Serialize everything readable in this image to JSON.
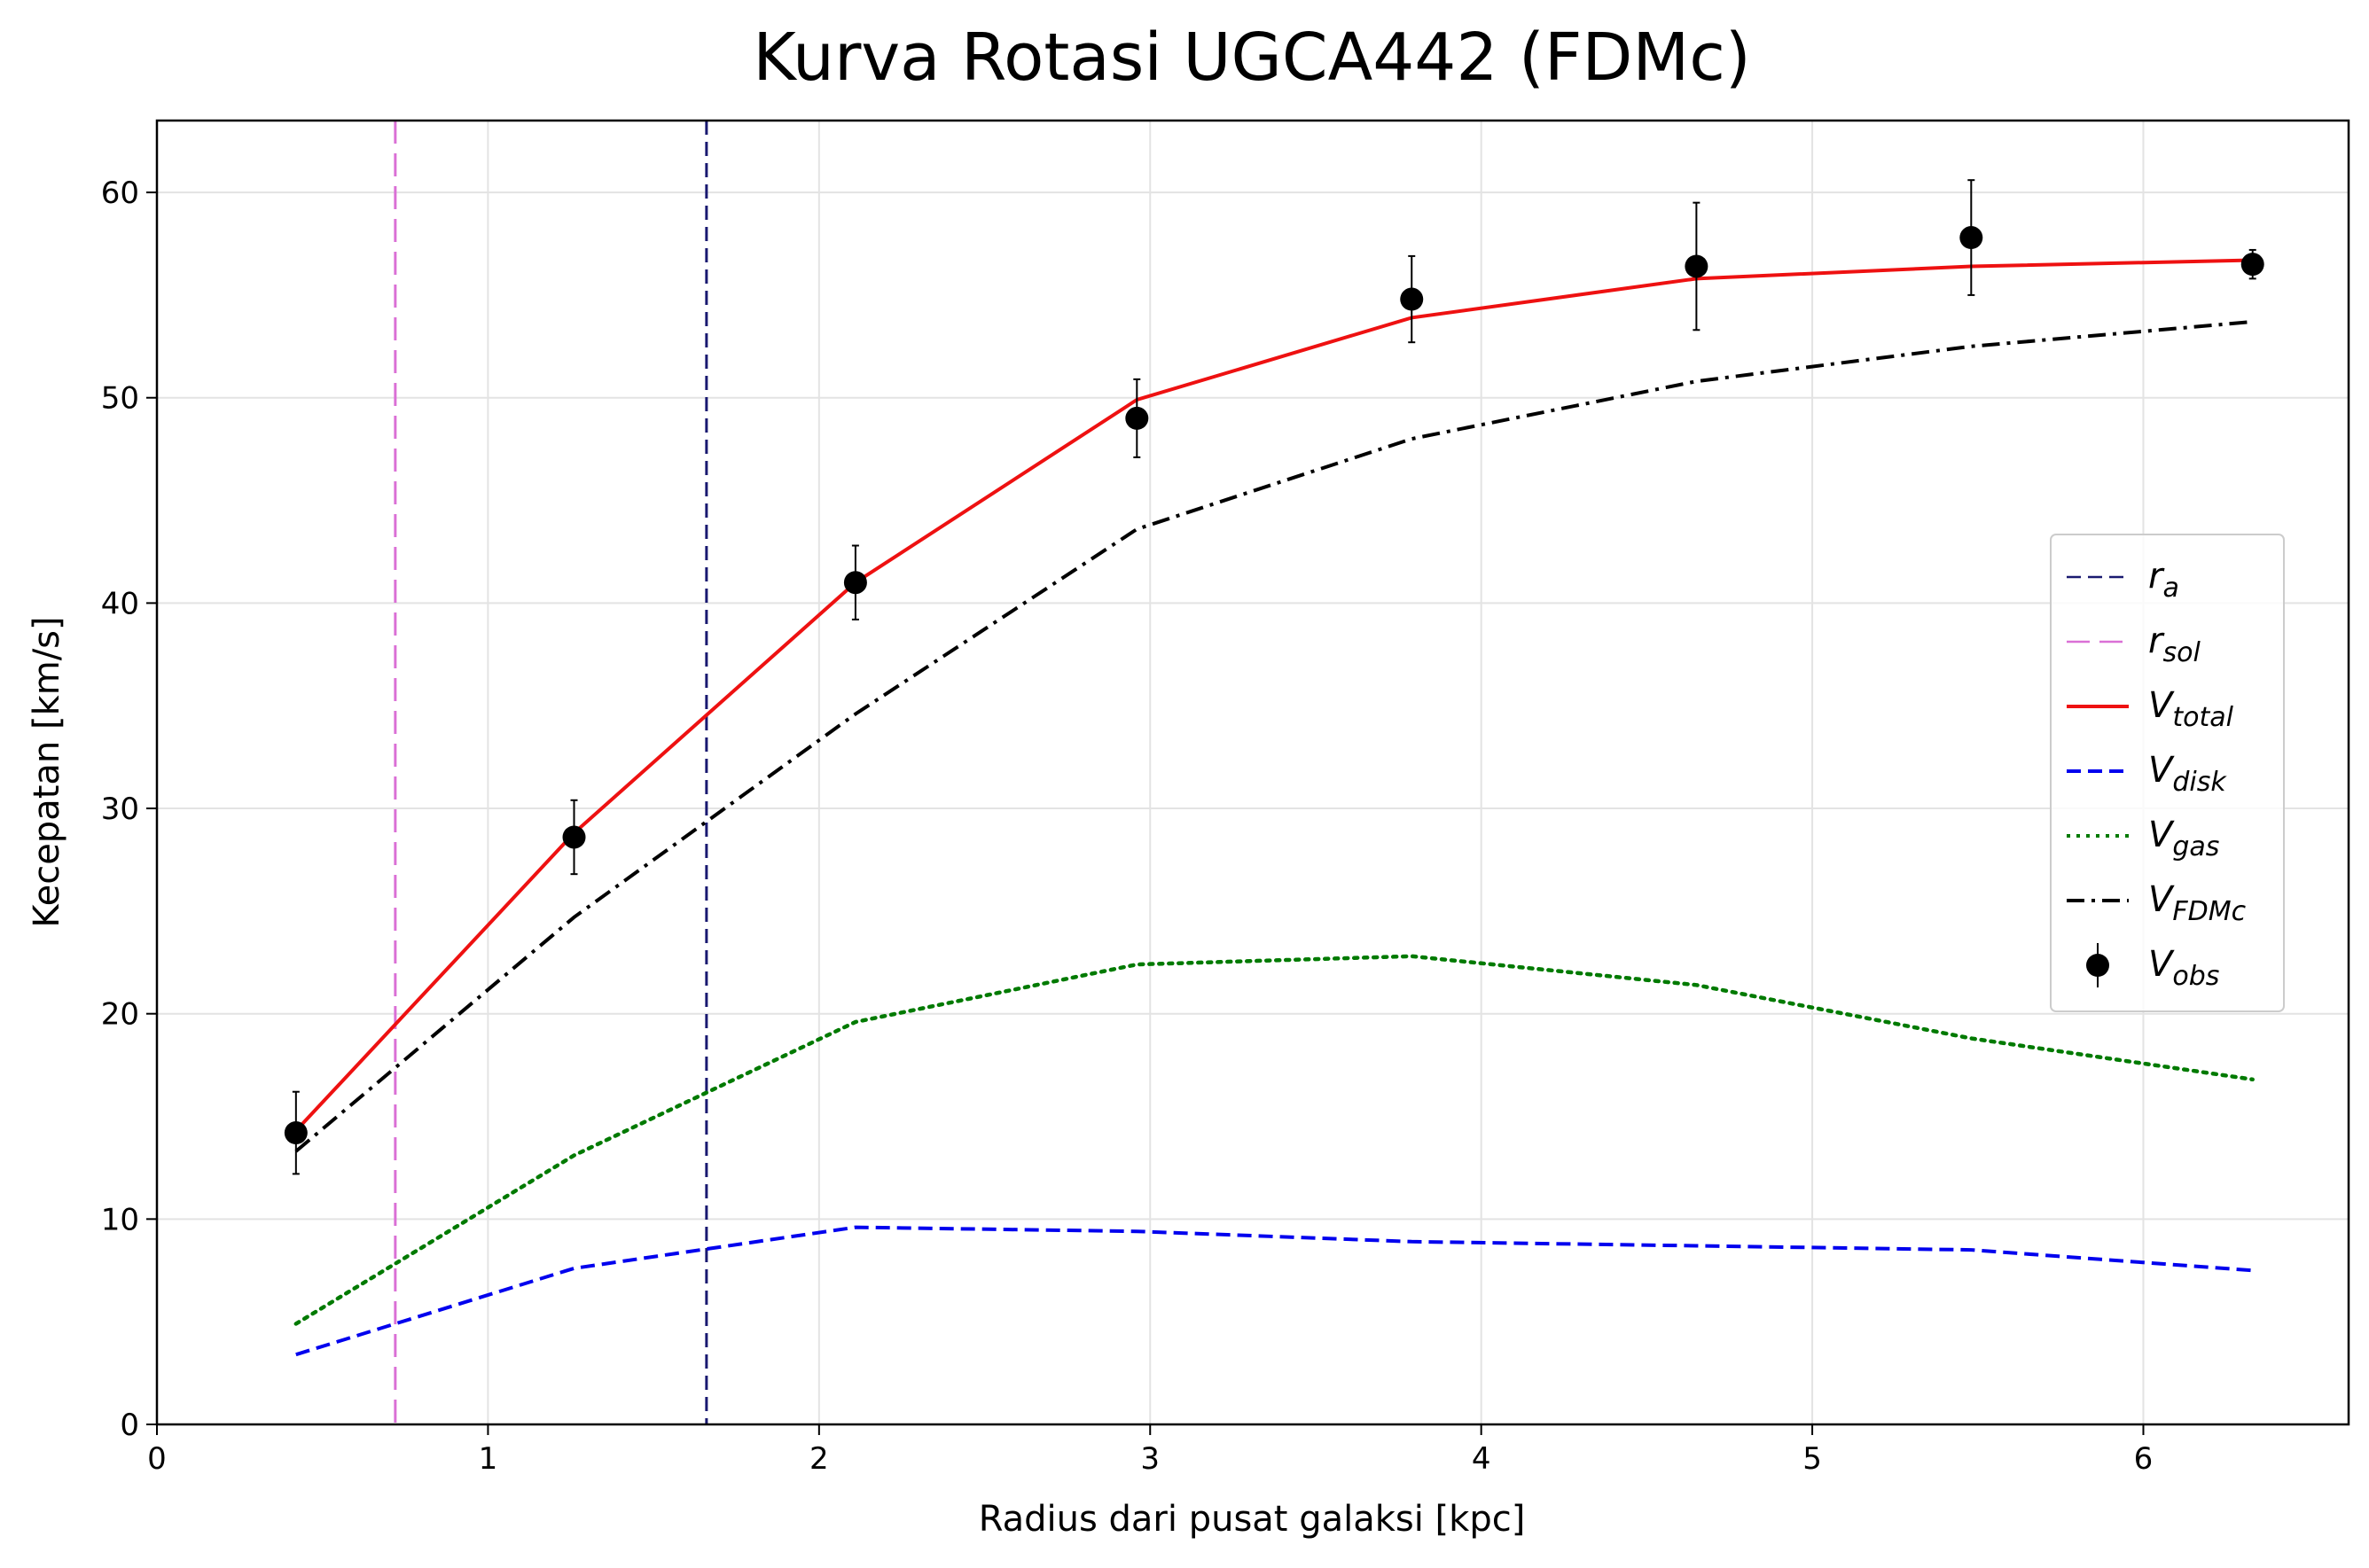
{
  "chart_data": {
    "type": "line",
    "title": "Kurva Rotasi UGCA442 (FDMc)",
    "xlabel": "Radius dari pusat galaksi [kpc]",
    "ylabel": "Kecepatan [km/s]",
    "xlim": [
      0,
      6.62
    ],
    "ylim": [
      0,
      63.5
    ],
    "xticks": [
      0,
      1,
      2,
      3,
      4,
      5,
      6
    ],
    "yticks": [
      0,
      10,
      20,
      30,
      40,
      50,
      60
    ],
    "grid": true,
    "legend_position": "center-right",
    "x": [
      0.42,
      1.26,
      2.11,
      2.96,
      3.79,
      4.65,
      5.48,
      6.33
    ],
    "vlines": [
      {
        "name": "r",
        "sub": "a",
        "x": 1.66,
        "color": "#191970",
        "style": "dashed"
      },
      {
        "name": "r",
        "sub": "sol",
        "x": 0.72,
        "color": "#da70d6",
        "style": "longdash"
      }
    ],
    "series": [
      {
        "name": "V",
        "sub": "total",
        "color": "#ee1111",
        "style": "solid",
        "values": [
          14.3,
          28.8,
          41.0,
          49.9,
          53.9,
          55.8,
          56.4,
          56.7
        ]
      },
      {
        "name": "V",
        "sub": "disk",
        "color": "#0000ee",
        "style": "dashed",
        "values": [
          3.4,
          7.6,
          9.6,
          9.4,
          8.9,
          8.7,
          8.5,
          7.5
        ]
      },
      {
        "name": "V",
        "sub": "gas",
        "color": "#007a00",
        "style": "dotted",
        "values": [
          4.9,
          13.1,
          19.6,
          22.4,
          22.8,
          21.4,
          18.8,
          16.8
        ]
      },
      {
        "name": "V",
        "sub": "FDMc",
        "color": "#000000",
        "style": "dashdot",
        "values": [
          13.3,
          24.7,
          34.6,
          43.6,
          48.0,
          50.8,
          52.5,
          53.7
        ]
      }
    ],
    "observed": {
      "name": "V",
      "sub": "obs",
      "color": "#000000",
      "values": [
        14.2,
        28.6,
        41.0,
        49.0,
        54.8,
        56.4,
        57.8,
        56.5
      ],
      "errors": [
        2.0,
        1.8,
        1.8,
        1.9,
        2.1,
        3.1,
        2.8,
        0.7
      ]
    }
  }
}
